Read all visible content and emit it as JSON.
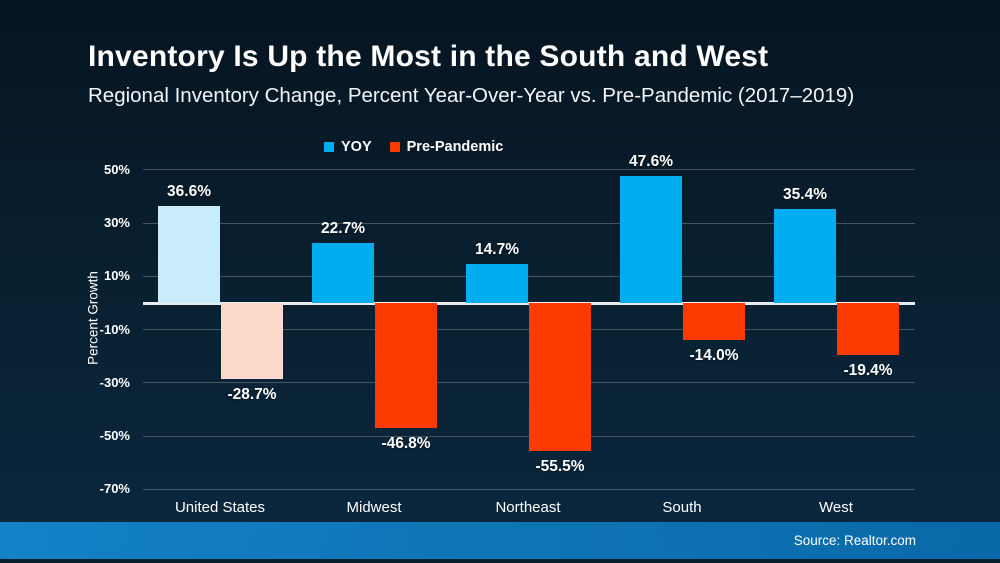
{
  "page": {
    "title": "Inventory Is Up the Most in the South and West",
    "subtitle": "Regional Inventory Change, Percent Year-Over-Year vs. Pre-Pandemic (2017–2019)",
    "source": "Source: Realtor.com"
  },
  "colors": {
    "yoy": "#00AEEF",
    "pre_pandemic": "#FB3A00",
    "yoy_muted": "#C9ECFC",
    "pre_pandemic_muted": "#FDD9CC",
    "source_bar": "#1280C4",
    "background_top": "#061420",
    "background_bottom": "#0B2840"
  },
  "chart_data": {
    "type": "bar",
    "title": "Inventory Is Up the Most in the South and West",
    "subtitle": "Regional Inventory Change, Percent Year-Over-Year vs. Pre-Pandemic (2017–2019)",
    "categories": [
      "United States",
      "Midwest",
      "Northeast",
      "South",
      "West"
    ],
    "series": [
      {
        "name": "YOY",
        "color": "#00AEEF",
        "muted_color": "#C9ECFC",
        "values": [
          36.6,
          22.7,
          14.7,
          47.6,
          35.4
        ],
        "labels": [
          "36.6%",
          "22.7%",
          "14.7%",
          "47.6%",
          "35.4%"
        ]
      },
      {
        "name": "Pre-Pandemic",
        "color": "#FB3A00",
        "muted_color": "#FDD9CC",
        "values": [
          -28.7,
          -46.8,
          -55.5,
          -14.0,
          -19.4
        ],
        "labels": [
          "-28.7%",
          "-46.8%",
          "-55.5%",
          "-14.0%",
          "-19.4%"
        ]
      }
    ],
    "muted_category_index": 0,
    "xlabel": "",
    "ylabel": "Percent Growth",
    "yticks": [
      50,
      30,
      10,
      -10,
      -30,
      -50,
      -70
    ],
    "ytick_labels": [
      "50%",
      "30%",
      "10%",
      "-10%",
      "-30%",
      "-50%",
      "-70%"
    ],
    "ylim": [
      -70,
      50
    ],
    "grid": true,
    "legend_position": "top"
  }
}
